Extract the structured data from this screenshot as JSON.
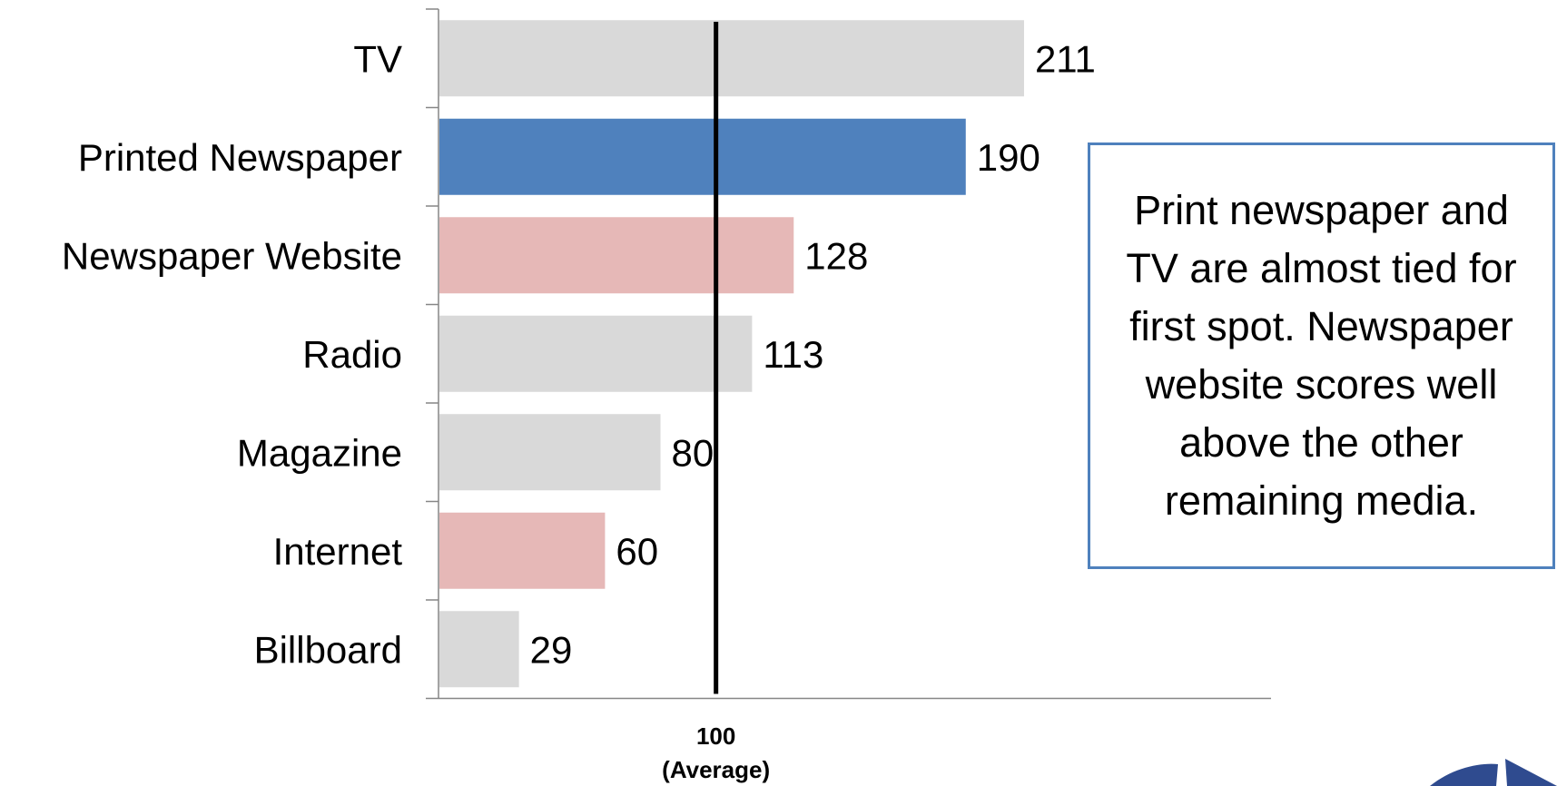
{
  "chart_data": {
    "type": "bar",
    "orientation": "horizontal",
    "categories": [
      "TV",
      "Printed Newspaper",
      "Newspaper Website",
      "Radio",
      "Magazine",
      "Internet",
      "Billboard"
    ],
    "values": [
      211,
      190,
      128,
      113,
      80,
      60,
      29
    ],
    "bar_colors": [
      "#d9d9d9",
      "#4f81bd",
      "#e6b8b7",
      "#d9d9d9",
      "#d9d9d9",
      "#e6b8b7",
      "#d9d9d9"
    ],
    "value_labels": [
      "211",
      "190",
      "128",
      "113",
      "80",
      "60",
      "29"
    ],
    "reference_line": {
      "value": 100,
      "label_value": "100",
      "label_note": "(Average)",
      "color": "#000000"
    },
    "xlim": [
      0,
      300
    ],
    "grid": false,
    "title": "",
    "xlabel": "",
    "ylabel": ""
  },
  "callout": {
    "text": "Print newspaper and TV are almost tied for first spot. Newspaper website scores well above the other remaining media.",
    "border_color": "#4f81bd"
  },
  "logo": {
    "icon": "logo-mark-icon",
    "color": "#2f4b8f"
  }
}
